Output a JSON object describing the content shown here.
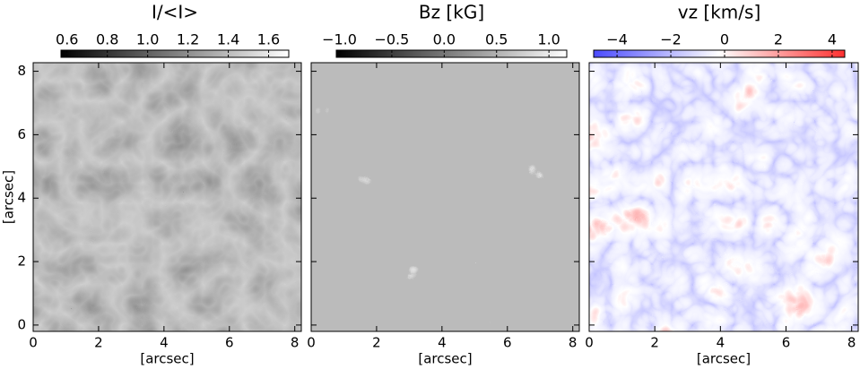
{
  "chart_data": [
    {
      "type": "image",
      "title": "I/<I>",
      "xlabel": "[arcsec]",
      "ylabel": "[arcsec]",
      "xlim": [
        0,
        8.2
      ],
      "xticks": [
        0,
        2,
        4,
        6,
        8
      ],
      "ylim": [
        -0.2,
        8.27
      ],
      "yticks": [
        0,
        2,
        4,
        6,
        8
      ],
      "clim": [
        0.57,
        1.7
      ],
      "cticks": [
        0.6,
        0.8,
        {
          "value": 1.0,
          "label": "1.0"
        },
        1.2,
        1.4,
        1.6
      ],
      "cmap": [
        "#000000",
        "#ffffff"
      ]
    },
    {
      "type": "image",
      "title": "Bz [kG]",
      "xlabel": "[arcsec]",
      "xlim": [
        0,
        8.2
      ],
      "xticks": [
        0,
        2,
        4,
        6,
        8
      ],
      "ylim": [
        -0.2,
        8.27
      ],
      "yticks": [
        0,
        2,
        4,
        6,
        8
      ],
      "clim": [
        -1.03,
        1.17
      ],
      "cticks": [
        {
          "value": -1.0,
          "label": "−1.0"
        },
        {
          "value": -0.5,
          "label": "−0.5"
        },
        {
          "value": 0.0,
          "label": "0.0"
        },
        0.5,
        {
          "value": 1.0,
          "label": "1.0"
        }
      ],
      "cmap": [
        "#000000",
        "#ffffff"
      ]
    },
    {
      "type": "image",
      "title": "vz [km/s]",
      "xlabel": "[arcsec]",
      "xlim": [
        0,
        8.2
      ],
      "xticks": [
        0,
        2,
        4,
        6,
        8
      ],
      "ylim": [
        -0.2,
        8.27
      ],
      "yticks": [
        0,
        2,
        4,
        6,
        8
      ],
      "clim": [
        -4.87,
        4.47
      ],
      "cticks": [
        {
          "value": -4,
          "label": "−4"
        },
        {
          "value": -2,
          "label": "−2"
        },
        0,
        2,
        4
      ],
      "cmap": [
        "#4a4aff",
        "#ffffff",
        "#ff3030"
      ]
    }
  ]
}
